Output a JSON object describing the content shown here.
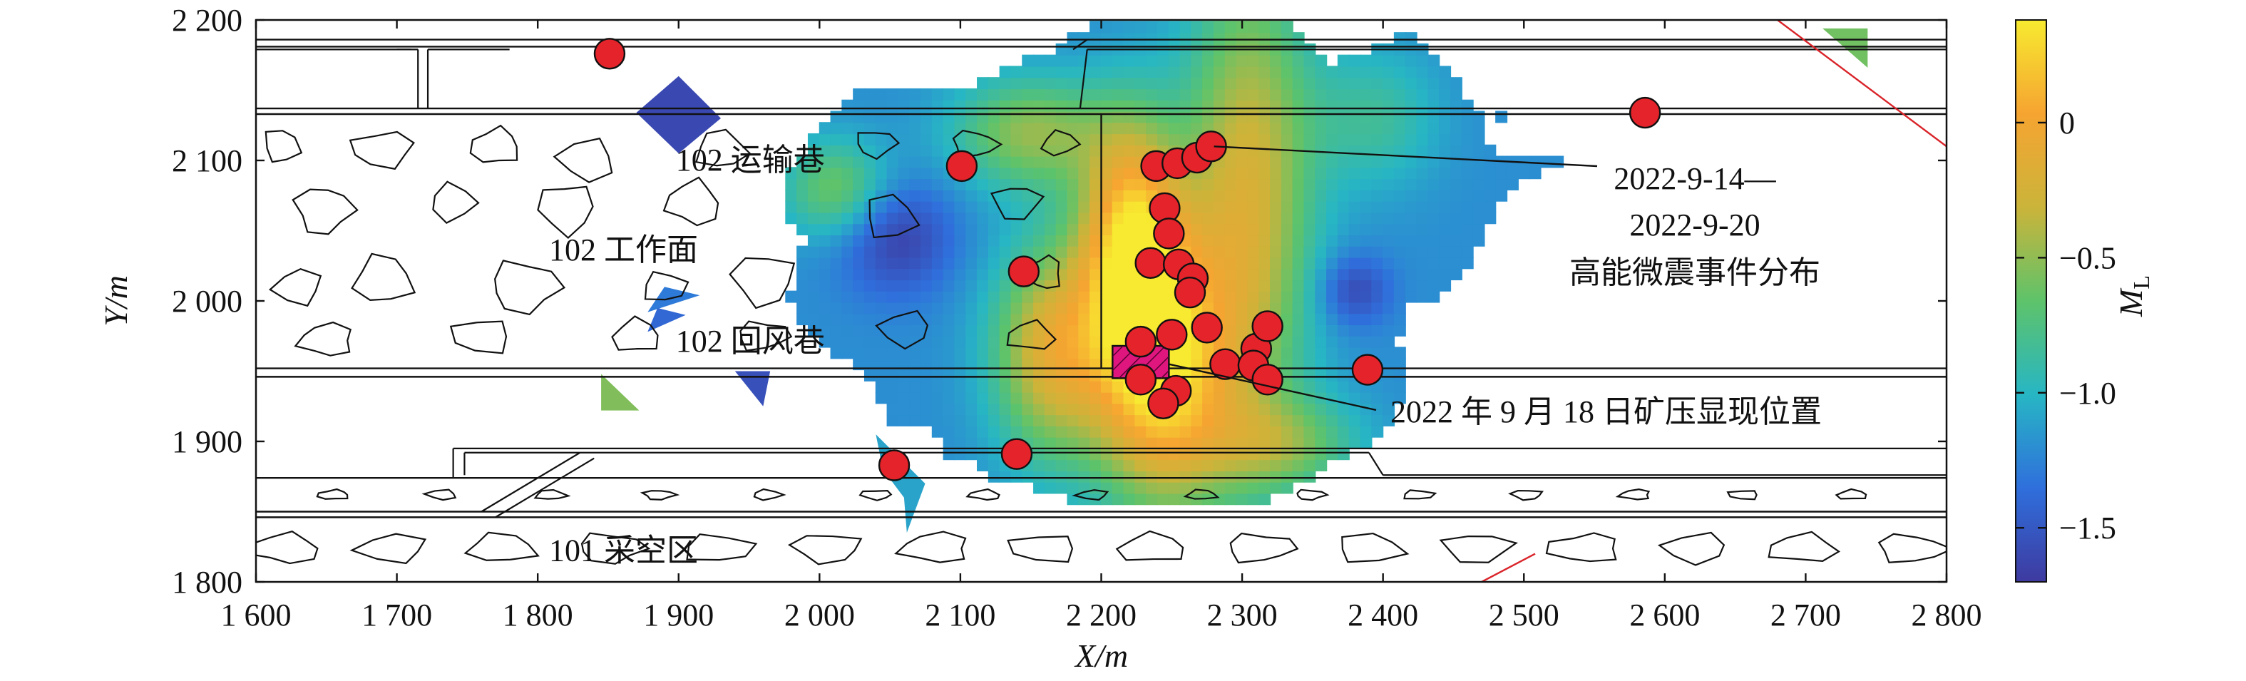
{
  "chart_data": {
    "type": "scatter",
    "title": "",
    "xlabel": "X/m",
    "ylabel": "Y/m",
    "xlim": [
      1600,
      2800
    ],
    "ylim": [
      1800,
      2200
    ],
    "xticks": [
      1600,
      1700,
      1800,
      1900,
      2000,
      2100,
      2200,
      2300,
      2400,
      2500,
      2600,
      2700,
      2800
    ],
    "xtick_labels": [
      "1 600",
      "1 700",
      "1 800",
      "1 900",
      "2 000",
      "2 100",
      "2 200",
      "2 300",
      "2 400",
      "2 500",
      "2 600",
      "2 700",
      "2 800"
    ],
    "yticks": [
      1800,
      1900,
      2000,
      2100,
      2200
    ],
    "ytick_labels": [
      "1 800",
      "1 900",
      "2 000",
      "2 100",
      "2 200"
    ],
    "grid": false,
    "colorbar": {
      "label": "M",
      "label_subscript": "L",
      "range": [
        -1.7,
        0.38
      ],
      "ticks": [
        0,
        -0.5,
        -1.0,
        -1.5
      ],
      "tick_labels": [
        "0",
        "−0.5",
        "−1.0",
        "−1.5"
      ],
      "colors": [
        "#3e3aa0",
        "#2f6fdc",
        "#27b6c4",
        "#5ec36a",
        "#cbb43a",
        "#f6a431",
        "#f7ea30"
      ]
    },
    "regions": [
      {
        "label": "102 运输巷",
        "x": 1898,
        "y": 2100
      },
      {
        "label": "102 工作面",
        "x": 1808,
        "y": 2036
      },
      {
        "label": "102 回风巷",
        "x": 1898,
        "y": 1971
      },
      {
        "label": "101 采空区",
        "x": 1808,
        "y": 1822
      }
    ],
    "events": [
      {
        "x": 1851,
        "y": 2176
      },
      {
        "x": 2586,
        "y": 2134
      },
      {
        "x": 2101,
        "y": 2096
      },
      {
        "x": 2145,
        "y": 2021
      },
      {
        "x": 2053,
        "y": 1883
      },
      {
        "x": 2140,
        "y": 1891
      },
      {
        "x": 2239,
        "y": 2096
      },
      {
        "x": 2254,
        "y": 2098
      },
      {
        "x": 2268,
        "y": 2102
      },
      {
        "x": 2278,
        "y": 2110
      },
      {
        "x": 2245,
        "y": 2066
      },
      {
        "x": 2248,
        "y": 2048
      },
      {
        "x": 2235,
        "y": 2027
      },
      {
        "x": 2255,
        "y": 2026
      },
      {
        "x": 2265,
        "y": 2016
      },
      {
        "x": 2263,
        "y": 2006
      },
      {
        "x": 2275,
        "y": 1981
      },
      {
        "x": 2250,
        "y": 1976
      },
      {
        "x": 2228,
        "y": 1971
      },
      {
        "x": 2310,
        "y": 1966
      },
      {
        "x": 2318,
        "y": 1982
      },
      {
        "x": 2288,
        "y": 1955
      },
      {
        "x": 2308,
        "y": 1954
      },
      {
        "x": 2318,
        "y": 1944
      },
      {
        "x": 2228,
        "y": 1944
      },
      {
        "x": 2253,
        "y": 1936
      },
      {
        "x": 2244,
        "y": 1927
      },
      {
        "x": 2389,
        "y": 1951
      }
    ],
    "pressure_zone": {
      "x": [
        2208,
        2248
      ],
      "y": [
        1945,
        1968
      ]
    },
    "annotations": [
      {
        "lines": [
          "2022-9-14—",
          "2022-9-20",
          "高能微震事件分布"
        ],
        "point": {
          "x": 2280,
          "y": 2110
        }
      },
      {
        "lines": [
          "2022 年 9 月 18 日矿压显现位置"
        ],
        "point": {
          "x": 2248,
          "y": 1955
        }
      }
    ],
    "colors": {
      "event_fill": "#e5232a",
      "zone_fill": "#e0167f",
      "fault": "#d9242a"
    }
  }
}
